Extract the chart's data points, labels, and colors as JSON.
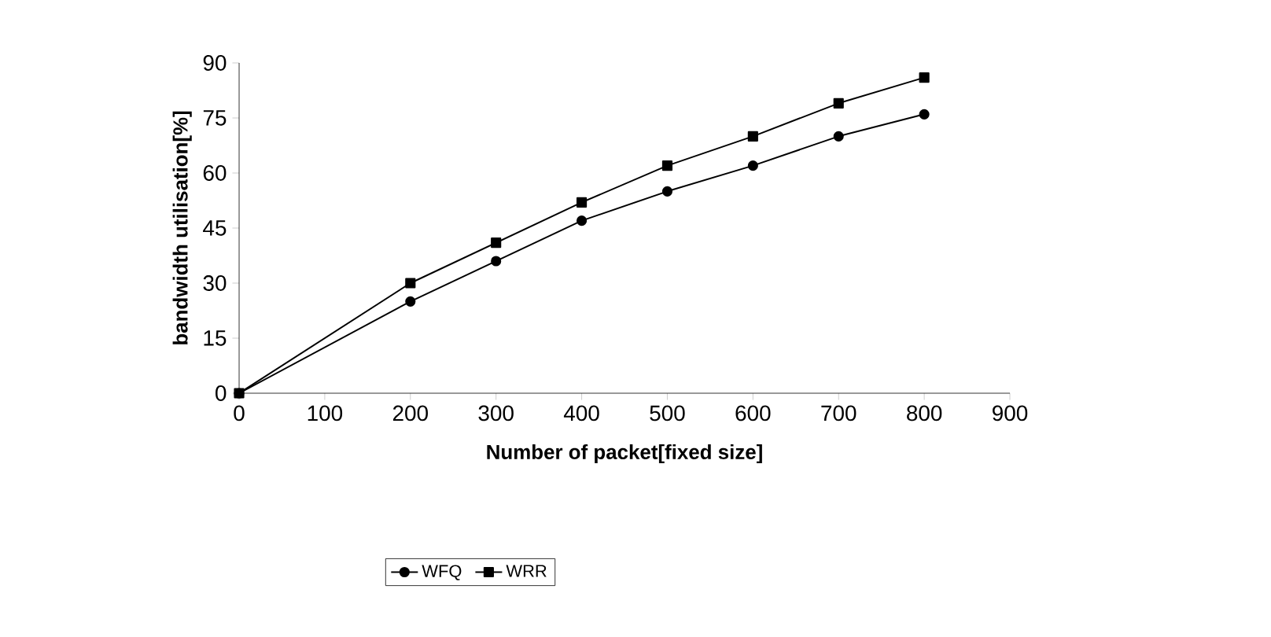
{
  "chart_data": {
    "type": "line",
    "xlabel": "Number of packet[fixed size]",
    "ylabel": "bandwidth utilisation[%]",
    "x": [
      0,
      200,
      300,
      400,
      500,
      600,
      700,
      800
    ],
    "series": [
      {
        "name": "WFQ",
        "color": "#000000",
        "marker": "circle",
        "values": [
          0,
          25,
          36,
          47,
          55,
          62,
          70,
          76
        ]
      },
      {
        "name": "WRR",
        "color": "#000000",
        "marker": "square",
        "values": [
          0,
          30,
          41,
          52,
          62,
          70,
          79,
          86
        ]
      }
    ],
    "xlim": [
      0,
      900
    ],
    "xticks": [
      0,
      100,
      200,
      300,
      400,
      500,
      600,
      700,
      800,
      900
    ],
    "ylim": [
      0,
      90
    ],
    "yticks": [
      0,
      15,
      30,
      45,
      60,
      75,
      90
    ],
    "grid": false,
    "legend": "bottom",
    "line_style": "solid"
  }
}
